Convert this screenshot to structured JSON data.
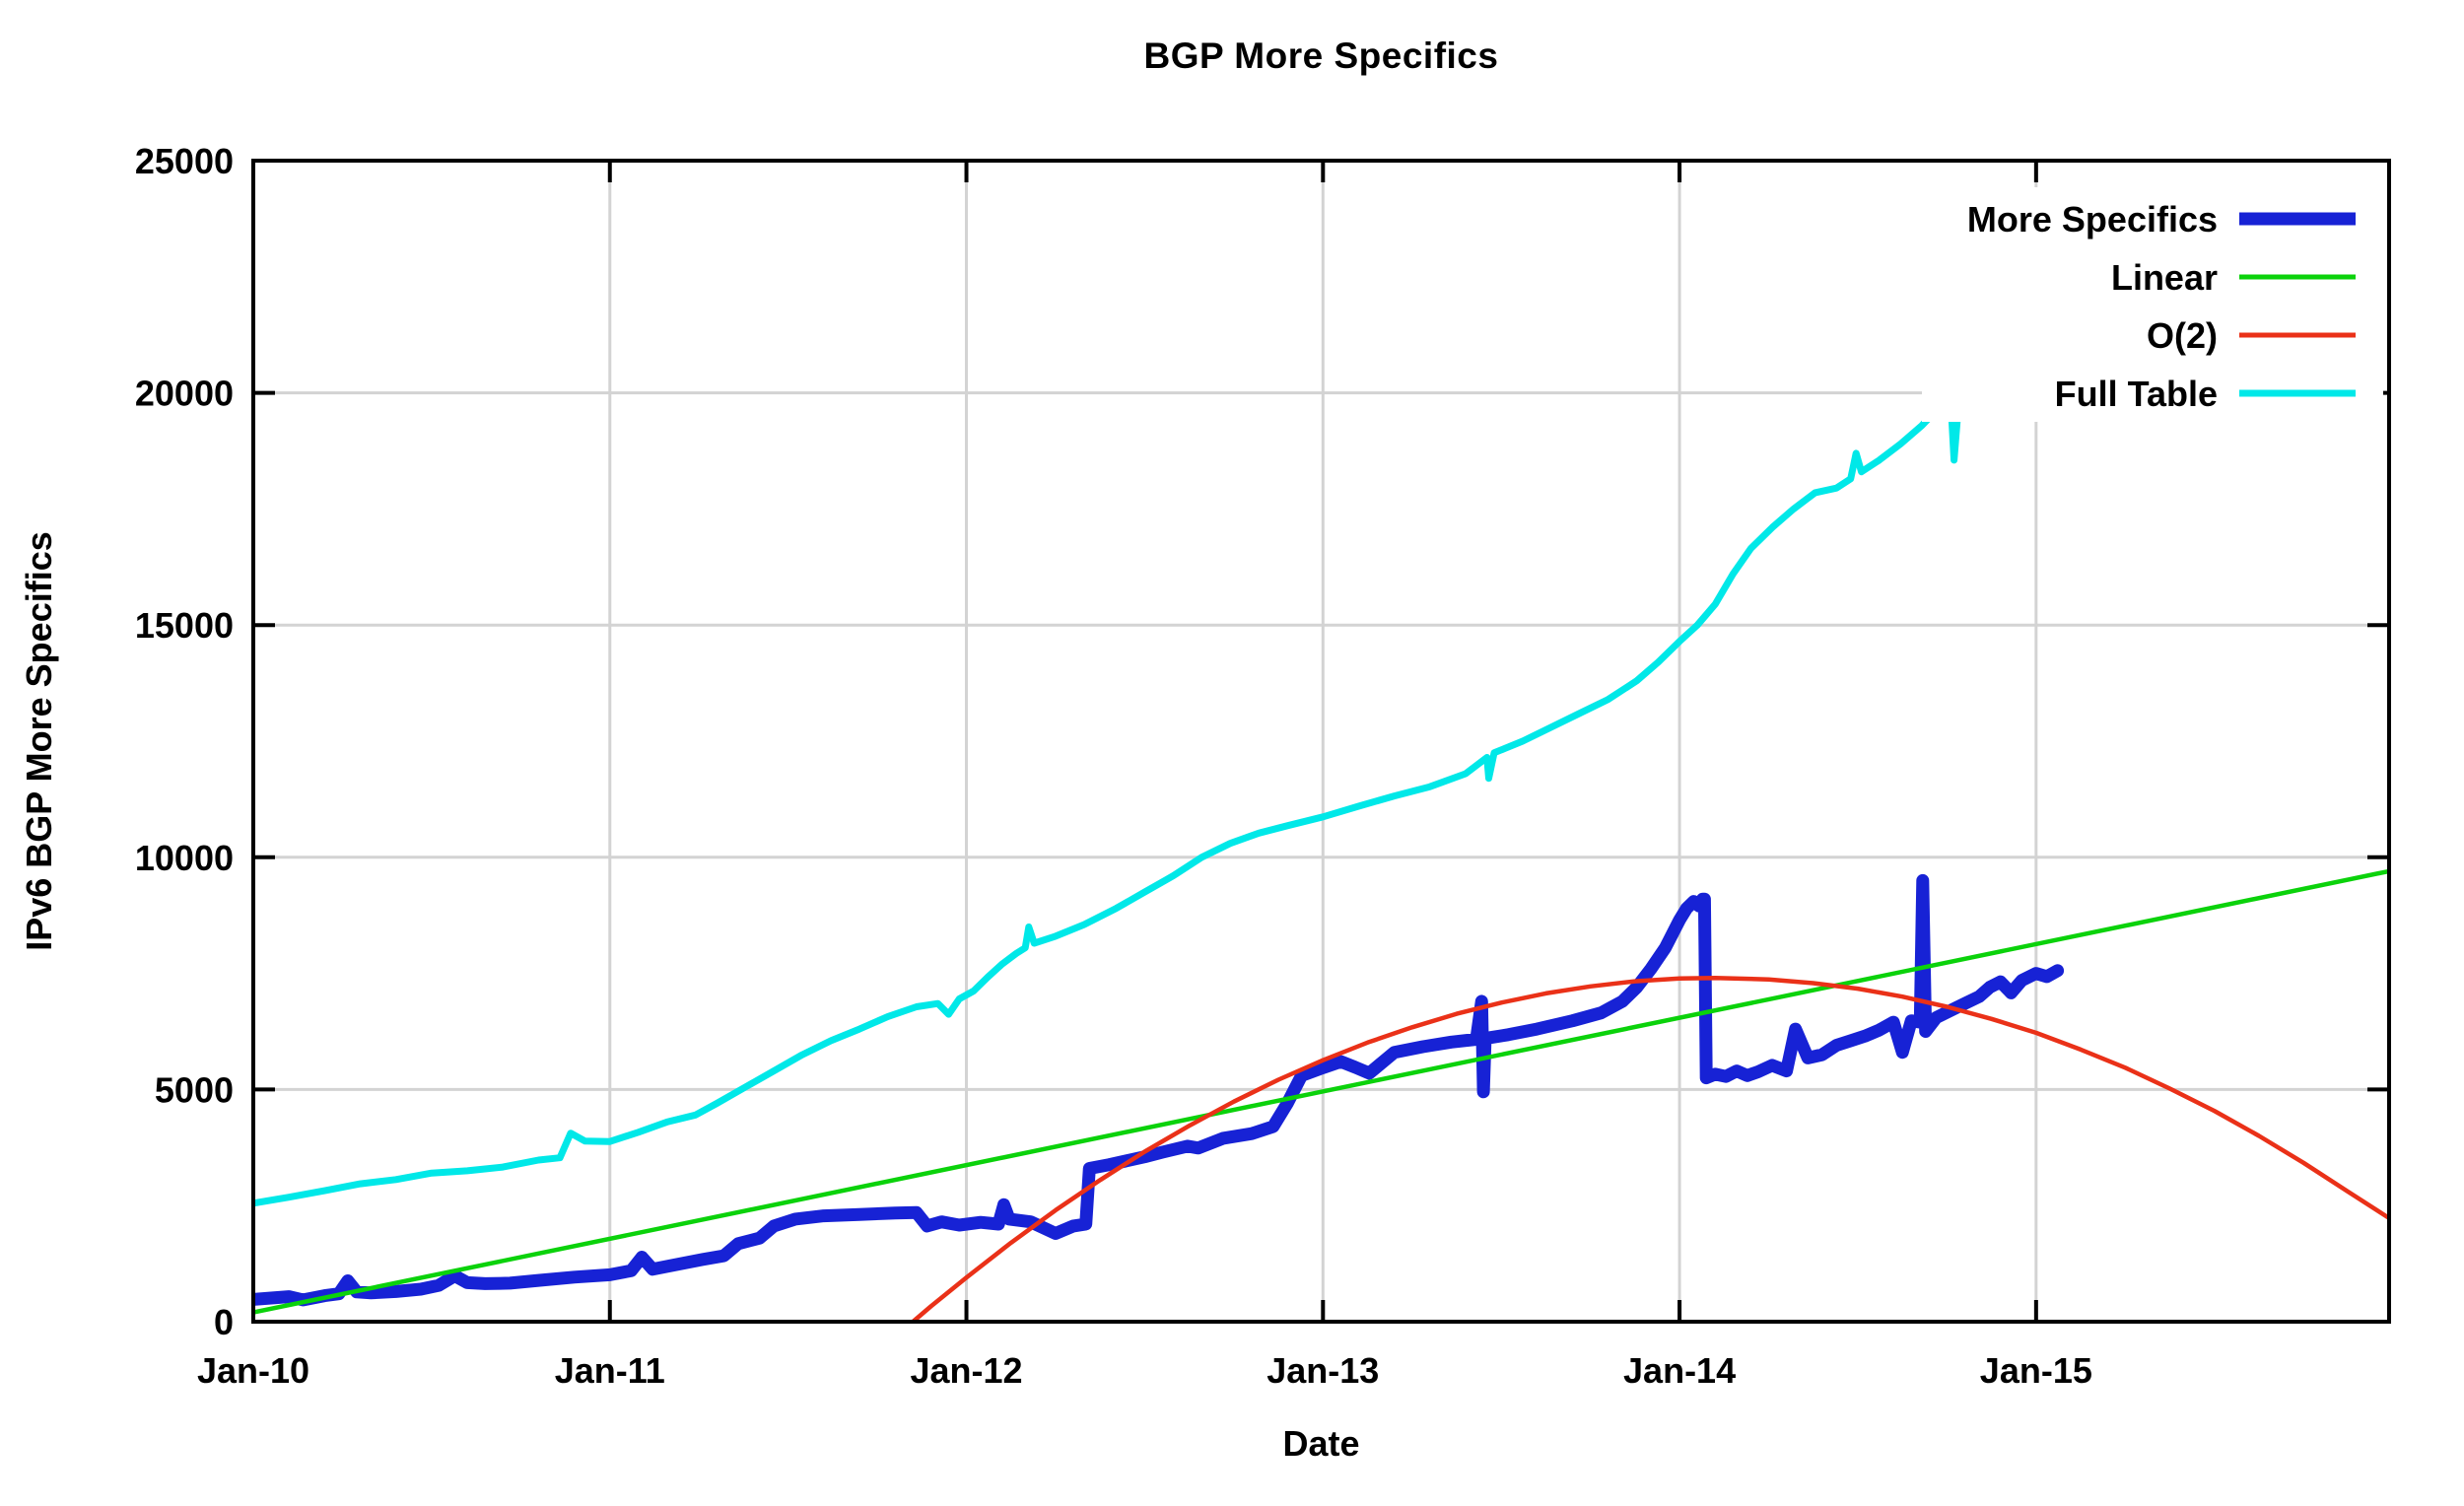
{
  "chart_data": {
    "type": "line",
    "title": "BGP More Specifics",
    "xlabel": "Date",
    "ylabel": "IPv6 BGP More Specifics",
    "xlim": [
      2010.0,
      2015.99
    ],
    "ylim": [
      0,
      25000
    ],
    "grid": true,
    "legend_position": "top-right-inset",
    "x_ticks": [
      {
        "year": 2010,
        "label": "Jan-10"
      },
      {
        "year": 2011,
        "label": "Jan-11"
      },
      {
        "year": 2012,
        "label": "Jan-12"
      },
      {
        "year": 2013,
        "label": "Jan-13"
      },
      {
        "year": 2014,
        "label": "Jan-14"
      },
      {
        "year": 2015,
        "label": "Jan-15"
      }
    ],
    "y_ticks": [
      {
        "value": 0,
        "label": "0"
      },
      {
        "value": 5000,
        "label": "5000"
      },
      {
        "value": 10000,
        "label": "10000"
      },
      {
        "value": 15000,
        "label": "15000"
      },
      {
        "value": 20000,
        "label": "20000"
      },
      {
        "value": 25000,
        "label": "25000"
      }
    ],
    "colors": {
      "more_specifics": "#1722d5",
      "linear": "#0bd20b",
      "o2": "#ea3118",
      "full_table": "#00e8e8",
      "grid": "#d3d3d3",
      "frame": "#000000"
    },
    "legend": [
      "More Specifics",
      "Linear",
      "O(2)",
      "Full Table"
    ],
    "series": [
      {
        "name": "More Specifics",
        "color": "#1722d5",
        "stroke_width": 13,
        "points": [
          [
            2010.0,
            480
          ],
          [
            2010.05,
            510
          ],
          [
            2010.1,
            540
          ],
          [
            2010.14,
            470
          ],
          [
            2010.2,
            560
          ],
          [
            2010.24,
            600
          ],
          [
            2010.265,
            880
          ],
          [
            2010.29,
            640
          ],
          [
            2010.33,
            620
          ],
          [
            2010.4,
            650
          ],
          [
            2010.47,
            700
          ],
          [
            2010.52,
            780
          ],
          [
            2010.565,
            990
          ],
          [
            2010.6,
            840
          ],
          [
            2010.65,
            820
          ],
          [
            2010.72,
            830
          ],
          [
            2010.8,
            890
          ],
          [
            2010.9,
            960
          ],
          [
            2011.0,
            1010
          ],
          [
            2011.06,
            1100
          ],
          [
            2011.09,
            1390
          ],
          [
            2011.12,
            1130
          ],
          [
            2011.18,
            1220
          ],
          [
            2011.26,
            1340
          ],
          [
            2011.32,
            1420
          ],
          [
            2011.36,
            1680
          ],
          [
            2011.42,
            1800
          ],
          [
            2011.46,
            2060
          ],
          [
            2011.52,
            2210
          ],
          [
            2011.6,
            2280
          ],
          [
            2011.7,
            2310
          ],
          [
            2011.8,
            2340
          ],
          [
            2011.86,
            2350
          ],
          [
            2011.89,
            2060
          ],
          [
            2011.93,
            2150
          ],
          [
            2011.98,
            2080
          ],
          [
            2012.04,
            2140
          ],
          [
            2012.09,
            2100
          ],
          [
            2012.105,
            2520
          ],
          [
            2012.12,
            2210
          ],
          [
            2012.18,
            2150
          ],
          [
            2012.25,
            1900
          ],
          [
            2012.3,
            2060
          ],
          [
            2012.335,
            2100
          ],
          [
            2012.345,
            3300
          ],
          [
            2012.4,
            3380
          ],
          [
            2012.5,
            3550
          ],
          [
            2012.55,
            3650
          ],
          [
            2012.62,
            3780
          ],
          [
            2012.65,
            3740
          ],
          [
            2012.72,
            3950
          ],
          [
            2012.8,
            4050
          ],
          [
            2012.86,
            4200
          ],
          [
            2012.9,
            4700
          ],
          [
            2012.94,
            5300
          ],
          [
            2013.0,
            5470
          ],
          [
            2013.05,
            5600
          ],
          [
            2013.09,
            5480
          ],
          [
            2013.13,
            5350
          ],
          [
            2013.2,
            5800
          ],
          [
            2013.28,
            5920
          ],
          [
            2013.36,
            6020
          ],
          [
            2013.43,
            6080
          ],
          [
            2013.445,
            6900
          ],
          [
            2013.45,
            4950
          ],
          [
            2013.455,
            6100
          ],
          [
            2013.52,
            6180
          ],
          [
            2013.6,
            6300
          ],
          [
            2013.7,
            6480
          ],
          [
            2013.78,
            6650
          ],
          [
            2013.84,
            6900
          ],
          [
            2013.88,
            7200
          ],
          [
            2013.92,
            7600
          ],
          [
            2013.96,
            8050
          ],
          [
            2014.0,
            8650
          ],
          [
            2014.02,
            8900
          ],
          [
            2014.04,
            9050
          ],
          [
            2014.055,
            8950
          ],
          [
            2014.065,
            9100
          ],
          [
            2014.07,
            9100
          ],
          [
            2014.075,
            5250
          ],
          [
            2014.1,
            5330
          ],
          [
            2014.13,
            5280
          ],
          [
            2014.16,
            5400
          ],
          [
            2014.19,
            5300
          ],
          [
            2014.22,
            5380
          ],
          [
            2014.26,
            5520
          ],
          [
            2014.3,
            5400
          ],
          [
            2014.325,
            6300
          ],
          [
            2014.36,
            5680
          ],
          [
            2014.4,
            5750
          ],
          [
            2014.44,
            5950
          ],
          [
            2014.48,
            6050
          ],
          [
            2014.52,
            6150
          ],
          [
            2014.56,
            6280
          ],
          [
            2014.6,
            6450
          ],
          [
            2014.625,
            5800
          ],
          [
            2014.65,
            6480
          ],
          [
            2014.675,
            6450
          ],
          [
            2014.682,
            9500
          ],
          [
            2014.69,
            6250
          ],
          [
            2014.72,
            6550
          ],
          [
            2014.76,
            6700
          ],
          [
            2014.8,
            6850
          ],
          [
            2014.84,
            7000
          ],
          [
            2014.87,
            7200
          ],
          [
            2014.9,
            7320
          ],
          [
            2014.93,
            7080
          ],
          [
            2014.96,
            7350
          ],
          [
            2015.0,
            7500
          ],
          [
            2015.03,
            7430
          ],
          [
            2015.06,
            7560
          ]
        ]
      },
      {
        "name": "Linear",
        "color": "#0bd20b",
        "stroke_width": 4.5,
        "points": [
          [
            2010.0,
            200
          ],
          [
            2015.99,
            9700
          ]
        ]
      },
      {
        "name": "O(2)",
        "color": "#ea3118",
        "stroke_width": 4.5,
        "points": [
          [
            2011.85,
            0
          ],
          [
            2011.9,
            330
          ],
          [
            2012.0,
            950
          ],
          [
            2012.125,
            1700
          ],
          [
            2012.25,
            2400
          ],
          [
            2012.375,
            3050
          ],
          [
            2012.5,
            3660
          ],
          [
            2012.625,
            4220
          ],
          [
            2012.75,
            4740
          ],
          [
            2012.875,
            5210
          ],
          [
            2013.0,
            5630
          ],
          [
            2013.125,
            6010
          ],
          [
            2013.25,
            6340
          ],
          [
            2013.375,
            6630
          ],
          [
            2013.5,
            6870
          ],
          [
            2013.625,
            7070
          ],
          [
            2013.75,
            7220
          ],
          [
            2013.875,
            7330
          ],
          [
            2014.0,
            7390
          ],
          [
            2014.1,
            7400
          ],
          [
            2014.25,
            7370
          ],
          [
            2014.375,
            7290
          ],
          [
            2014.5,
            7170
          ],
          [
            2014.625,
            7000
          ],
          [
            2014.75,
            6780
          ],
          [
            2014.875,
            6520
          ],
          [
            2015.0,
            6220
          ],
          [
            2015.125,
            5860
          ],
          [
            2015.25,
            5470
          ],
          [
            2015.375,
            5020
          ],
          [
            2015.5,
            4540
          ],
          [
            2015.625,
            4000
          ],
          [
            2015.75,
            3420
          ],
          [
            2015.875,
            2800
          ],
          [
            2015.99,
            2230
          ]
        ]
      },
      {
        "name": "Full Table",
        "color": "#00e8e8",
        "stroke_width": 7,
        "points": [
          [
            2010.0,
            2550
          ],
          [
            2010.1,
            2680
          ],
          [
            2010.2,
            2820
          ],
          [
            2010.3,
            2970
          ],
          [
            2010.4,
            3060
          ],
          [
            2010.5,
            3200
          ],
          [
            2010.6,
            3250
          ],
          [
            2010.7,
            3330
          ],
          [
            2010.8,
            3480
          ],
          [
            2010.86,
            3530
          ],
          [
            2010.89,
            4060
          ],
          [
            2010.93,
            3890
          ],
          [
            2011.0,
            3880
          ],
          [
            2011.08,
            4080
          ],
          [
            2011.16,
            4300
          ],
          [
            2011.24,
            4450
          ],
          [
            2011.3,
            4700
          ],
          [
            2011.38,
            5050
          ],
          [
            2011.46,
            5400
          ],
          [
            2011.54,
            5750
          ],
          [
            2011.62,
            6050
          ],
          [
            2011.7,
            6300
          ],
          [
            2011.78,
            6570
          ],
          [
            2011.86,
            6780
          ],
          [
            2011.92,
            6850
          ],
          [
            2011.95,
            6620
          ],
          [
            2011.98,
            6950
          ],
          [
            2012.02,
            7120
          ],
          [
            2012.06,
            7420
          ],
          [
            2012.1,
            7700
          ],
          [
            2012.14,
            7930
          ],
          [
            2012.165,
            8050
          ],
          [
            2012.175,
            8500
          ],
          [
            2012.19,
            8150
          ],
          [
            2012.25,
            8300
          ],
          [
            2012.33,
            8550
          ],
          [
            2012.42,
            8900
          ],
          [
            2012.5,
            9250
          ],
          [
            2012.58,
            9600
          ],
          [
            2012.66,
            10000
          ],
          [
            2012.74,
            10300
          ],
          [
            2012.82,
            10520
          ],
          [
            2012.9,
            10680
          ],
          [
            2013.0,
            10870
          ],
          [
            2013.1,
            11100
          ],
          [
            2013.2,
            11320
          ],
          [
            2013.3,
            11520
          ],
          [
            2013.4,
            11800
          ],
          [
            2013.46,
            12150
          ],
          [
            2013.465,
            11700
          ],
          [
            2013.48,
            12250
          ],
          [
            2013.56,
            12500
          ],
          [
            2013.64,
            12800
          ],
          [
            2013.72,
            13100
          ],
          [
            2013.8,
            13400
          ],
          [
            2013.88,
            13800
          ],
          [
            2013.94,
            14200
          ],
          [
            2014.0,
            14650
          ],
          [
            2014.05,
            15000
          ],
          [
            2014.1,
            15450
          ],
          [
            2014.15,
            16100
          ],
          [
            2014.2,
            16650
          ],
          [
            2014.26,
            17100
          ],
          [
            2014.32,
            17500
          ],
          [
            2014.38,
            17850
          ],
          [
            2014.44,
            17950
          ],
          [
            2014.48,
            18150
          ],
          [
            2014.495,
            18700
          ],
          [
            2014.51,
            18300
          ],
          [
            2014.56,
            18550
          ],
          [
            2014.62,
            18900
          ],
          [
            2014.68,
            19300
          ],
          [
            2014.73,
            19700
          ],
          [
            2014.76,
            19950
          ],
          [
            2014.77,
            18550
          ],
          [
            2014.785,
            20000
          ],
          [
            2014.83,
            20250
          ],
          [
            2014.88,
            20500
          ],
          [
            2014.93,
            20750
          ],
          [
            2014.97,
            20950
          ],
          [
            2015.0,
            21200
          ],
          [
            2015.02,
            21500
          ],
          [
            2015.04,
            21750
          ],
          [
            2015.06,
            21900
          ]
        ]
      }
    ]
  }
}
